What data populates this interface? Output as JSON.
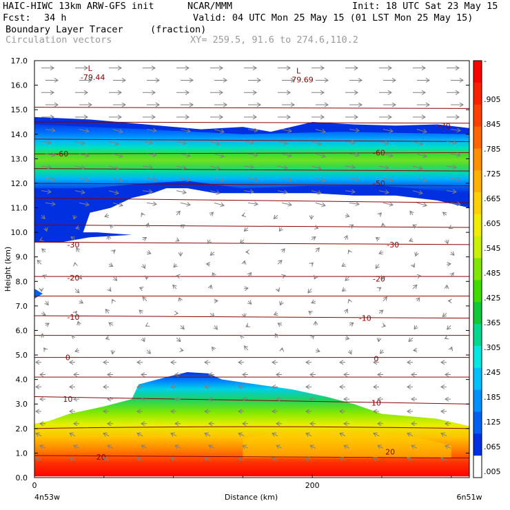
{
  "header": {
    "model": "HAIC-HIWC 13km ARW-GFS init",
    "center": "NCAR/MMM",
    "init": "Init: 18 UTC Sat 23 May 15",
    "fcst_label": "Fcst:",
    "fcst_value": "34 h",
    "valid": "Valid: 04 UTC Mon 25 May 15 (01 LST Mon 25 May 15)",
    "field": "Boundary Layer Tracer",
    "units": "(fraction)",
    "vectors": "Circulation vectors",
    "xy": "XY= 259.5, 91.6 to 274.6,110.2"
  },
  "chart_data": {
    "type": "heatmap",
    "title": "Boundary Layer Tracer",
    "units": "(fraction)",
    "ylabel": "Height (km)",
    "xlabel": "Distance (km)",
    "ylim": [
      0.0,
      17.0
    ],
    "xlim": [
      0,
      313
    ],
    "yticks": [
      "0.0",
      "1.0",
      "2.0",
      "3.0",
      "4.0",
      "5.0",
      "6.0",
      "7.0",
      "8.0",
      "9.0",
      "10.0",
      "11.0",
      "12.0",
      "13.0",
      "14.0",
      "15.0",
      "16.0",
      "17.0"
    ],
    "xticks": [
      {
        "value": 0,
        "label": "0"
      },
      {
        "value": 200,
        "label": "200"
      }
    ],
    "x_endpoints": {
      "left": "4n53w",
      "right": "6n51w"
    },
    "colorbar": {
      "labels": [
        "-",
        ".905",
        ".845",
        ".785",
        ".725",
        ".665",
        ".605",
        ".545",
        ".485",
        ".425",
        ".365",
        ".305",
        ".245",
        ".185",
        ".125",
        ".065",
        ".005"
      ],
      "colors": [
        "#ff0000",
        "#ff2000",
        "#ff4000",
        "#ff6600",
        "#ff9000",
        "#ffb000",
        "#ffd000",
        "#f0ec00",
        "#c8f000",
        "#80e800",
        "#40dc00",
        "#10c838",
        "#00d890",
        "#00e8e0",
        "#00c0ff",
        "#0090ff",
        "#0060f0",
        "#0030e0",
        "#ffffff"
      ]
    },
    "temperature_contours": {
      "color": "#8b0000",
      "values_c": [
        -70,
        -60,
        -50,
        -30,
        -20,
        -10,
        0,
        10,
        20
      ],
      "labels": [
        "-70",
        "-60",
        "-50",
        "-30",
        "-20",
        "-10",
        "0",
        "10",
        "20"
      ]
    },
    "minima": [
      {
        "symbol": "L",
        "value": "-79.44",
        "x_km": 40,
        "height_km": 16.3
      },
      {
        "symbol": "L",
        "value": "-79.69",
        "x_km": 190,
        "height_km": 16.2
      }
    ],
    "tracer_layers": [
      {
        "name": "upper",
        "base_km": 11.5,
        "top_km": 14.7,
        "peak_km": 12.9
      },
      {
        "name": "lower",
        "base_km": 0.0,
        "top_km": 4.3,
        "peak_km": 0.5
      }
    ]
  }
}
